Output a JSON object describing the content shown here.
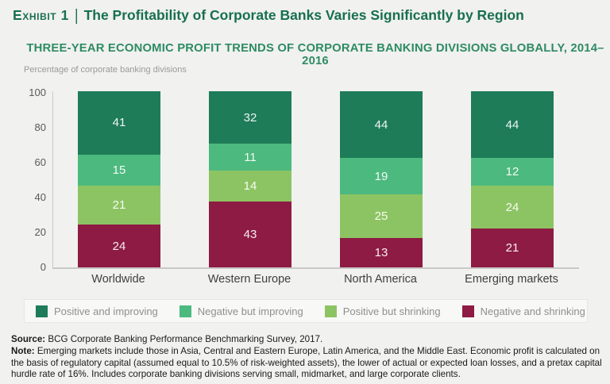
{
  "header": {
    "exhibit_label": "Exhibit 1",
    "divider": "|",
    "title": "The Profitability of Corporate Banks Varies Significantly by Region"
  },
  "subtitle": "THREE-YEAR ECONOMIC PROFIT TRENDS OF CORPORATE BANKING DIVISIONS GLOBALLY, 2014–2016",
  "unit_label": "Percentage of corporate banking divisions",
  "chart_data": {
    "type": "bar",
    "stacked": true,
    "title": "THREE-YEAR ECONOMIC PROFIT TRENDS OF CORPORATE BANKING DIVISIONS GLOBALLY, 2014–2016",
    "ylabel": "Percentage of corporate banking divisions",
    "xlabel": "",
    "categories": [
      "Worldwide",
      "Western Europe",
      "North America",
      "Emerging markets"
    ],
    "series": [
      {
        "name": "Positive and improving",
        "color": "#1e7c58",
        "values": [
          41,
          32,
          44,
          44
        ]
      },
      {
        "name": "Negative but improving",
        "color": "#4cb97e",
        "values": [
          15,
          11,
          19,
          12
        ]
      },
      {
        "name": "Positive but shrinking",
        "color": "#8dc463",
        "values": [
          21,
          14,
          25,
          24
        ]
      },
      {
        "name": "Negative and shrinking",
        "color": "#8d1b43",
        "values": [
          24,
          43,
          13,
          21
        ]
      }
    ],
    "segment_order_top_to_bottom": true,
    "yticks": [
      0,
      20,
      40,
      60,
      80,
      100
    ],
    "ylim": [
      0,
      101
    ],
    "grid": false,
    "legend_position": "bottom"
  },
  "footer": {
    "source_label": "Source:",
    "source_text": " BCG Corporate Banking Performance Benchmarking Survey, 2017.",
    "note_label": "Note:",
    "note_text": " Emerging markets include those in Asia, Central and Eastern Europe, Latin America, and the Middle East. Economic profit is calculated on the basis of regulatory capital (assumed equal to 10.5% of risk-weighted assets), the lower of actual or expected loan losses, and a pretax capital hurdle rate of 16%. Includes corporate banking divisions serving small, midmarket, and large corporate clients."
  }
}
